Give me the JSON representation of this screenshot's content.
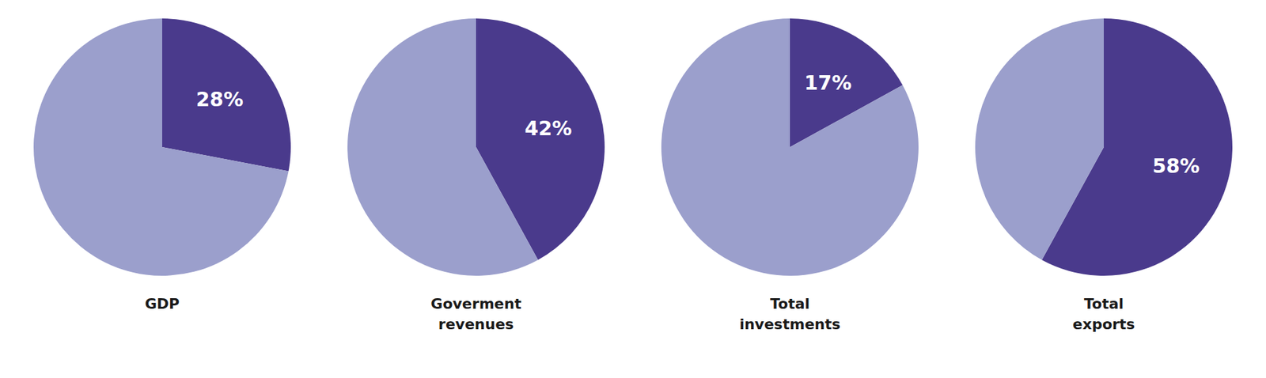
{
  "chart_data": [
    {
      "type": "pie",
      "title": "GDP",
      "values": [
        28,
        72
      ],
      "colors": [
        "#4a3a8c",
        "#9b9fcc"
      ],
      "value_labels": [
        "28%",
        null
      ],
      "data_labels": true
    },
    {
      "type": "pie",
      "title": "Goverment\nrevenues",
      "values": [
        42,
        58
      ],
      "colors": [
        "#4a3a8c",
        "#9b9fcc"
      ],
      "value_labels": [
        "42%",
        null
      ],
      "data_labels": true
    },
    {
      "type": "pie",
      "title": "Total\ninvestments",
      "values": [
        17,
        83
      ],
      "colors": [
        "#4a3a8c",
        "#9b9fcc"
      ],
      "value_labels": [
        "17%",
        null
      ],
      "data_labels": true
    },
    {
      "type": "pie",
      "title": "Total\nexports",
      "values": [
        58,
        42
      ],
      "colors": [
        "#4a3a8c",
        "#9b9fcc"
      ],
      "value_labels": [
        "58%",
        null
      ],
      "data_labels": true
    }
  ]
}
